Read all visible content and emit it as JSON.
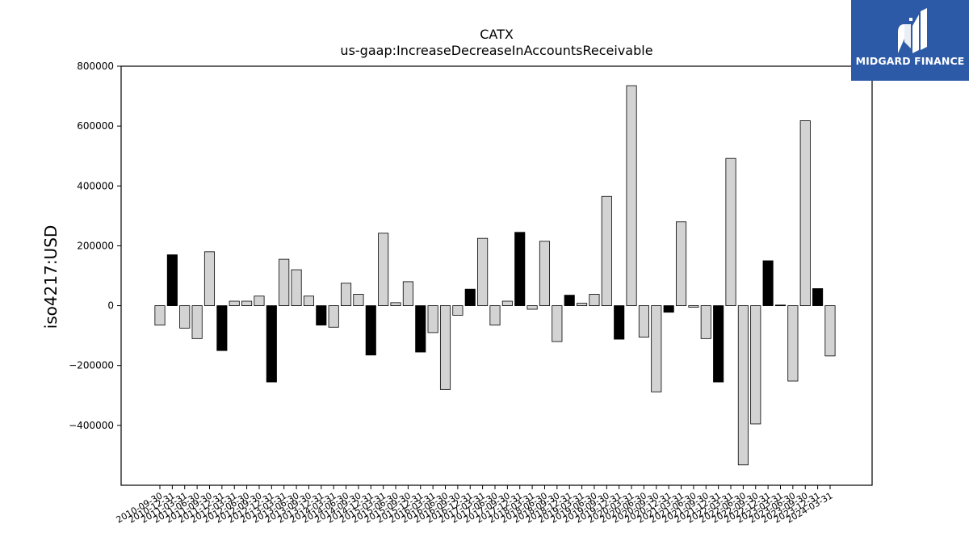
{
  "logo": {
    "text": "MIDGARD FINANCE",
    "icon": "midgard-finance-logo-icon",
    "bg_color": "#2d5aa6"
  },
  "chart_data": {
    "type": "bar",
    "title": "CATX",
    "subtitle": "us-gaap:IncreaseDecreaseInAccountsReceivable",
    "ylabel": "iso4217:USD",
    "xlabel": "",
    "ylim": [
      -600000,
      800000
    ],
    "yticks": [
      -400000,
      -200000,
      0,
      200000,
      400000,
      600000,
      800000
    ],
    "grid": false,
    "colors": {
      "q4_highlight": "#000000",
      "default": "#d3d3d3",
      "edge": "#000000"
    },
    "categories": [
      "2010-09-30",
      "2010-12-31",
      "2011-03-31",
      "2011-06-30",
      "2011-09-30",
      "2011-12-31",
      "2012-03-31",
      "2012-06-30",
      "2012-09-30",
      "2012-12-31",
      "2013-03-31",
      "2013-06-30",
      "2013-09-30",
      "2013-12-31",
      "2014-03-31",
      "2014-06-30",
      "2014-09-30",
      "2014-12-31",
      "2015-03-31",
      "2015-06-30",
      "2015-09-30",
      "2015-12-31",
      "2016-03-31",
      "2016-06-30",
      "2016-09-30",
      "2016-12-31",
      "2017-03-31",
      "2017-06-30",
      "2017-09-30",
      "2017-12-31",
      "2018-03-31",
      "2018-06-30",
      "2018-09-30",
      "2018-12-31",
      "2019-03-31",
      "2019-06-30",
      "2019-09-30",
      "2019-12-31",
      "2020-03-31",
      "2020-06-30",
      "2020-09-30",
      "2020-12-31",
      "2021-03-31",
      "2021-06-30",
      "2021-09-30",
      "2021-12-31",
      "2022-03-31",
      "2022-06-30",
      "2022-09-30",
      "2022-12-31",
      "2023-03-31",
      "2023-06-30",
      "2023-09-30",
      "2023-12-31",
      "2024-03-31"
    ],
    "values": [
      -65000,
      170000,
      -75000,
      -110000,
      180000,
      -150000,
      15000,
      15000,
      32000,
      -255000,
      155000,
      120000,
      32000,
      -65000,
      -72000,
      75000,
      38000,
      -165000,
      242000,
      10000,
      80000,
      -155000,
      -90000,
      -280000,
      -32000,
      55000,
      225000,
      -65000,
      15000,
      245000,
      -12000,
      215000,
      -120000,
      35000,
      8000,
      38000,
      365000,
      -112000,
      735000,
      -105000,
      -288000,
      -22000,
      280000,
      -5000,
      -110000,
      -255000,
      492000,
      -532000,
      -395000,
      150000,
      2000,
      -252000,
      618000,
      57000,
      -168000
    ],
    "highlight": [
      false,
      true,
      false,
      false,
      false,
      true,
      false,
      false,
      false,
      true,
      false,
      false,
      false,
      true,
      false,
      false,
      false,
      true,
      false,
      false,
      false,
      true,
      false,
      false,
      false,
      true,
      false,
      false,
      false,
      true,
      false,
      false,
      false,
      true,
      false,
      false,
      false,
      true,
      false,
      false,
      false,
      true,
      false,
      false,
      false,
      true,
      false,
      false,
      false,
      true,
      false,
      false,
      false,
      true,
      false
    ]
  }
}
